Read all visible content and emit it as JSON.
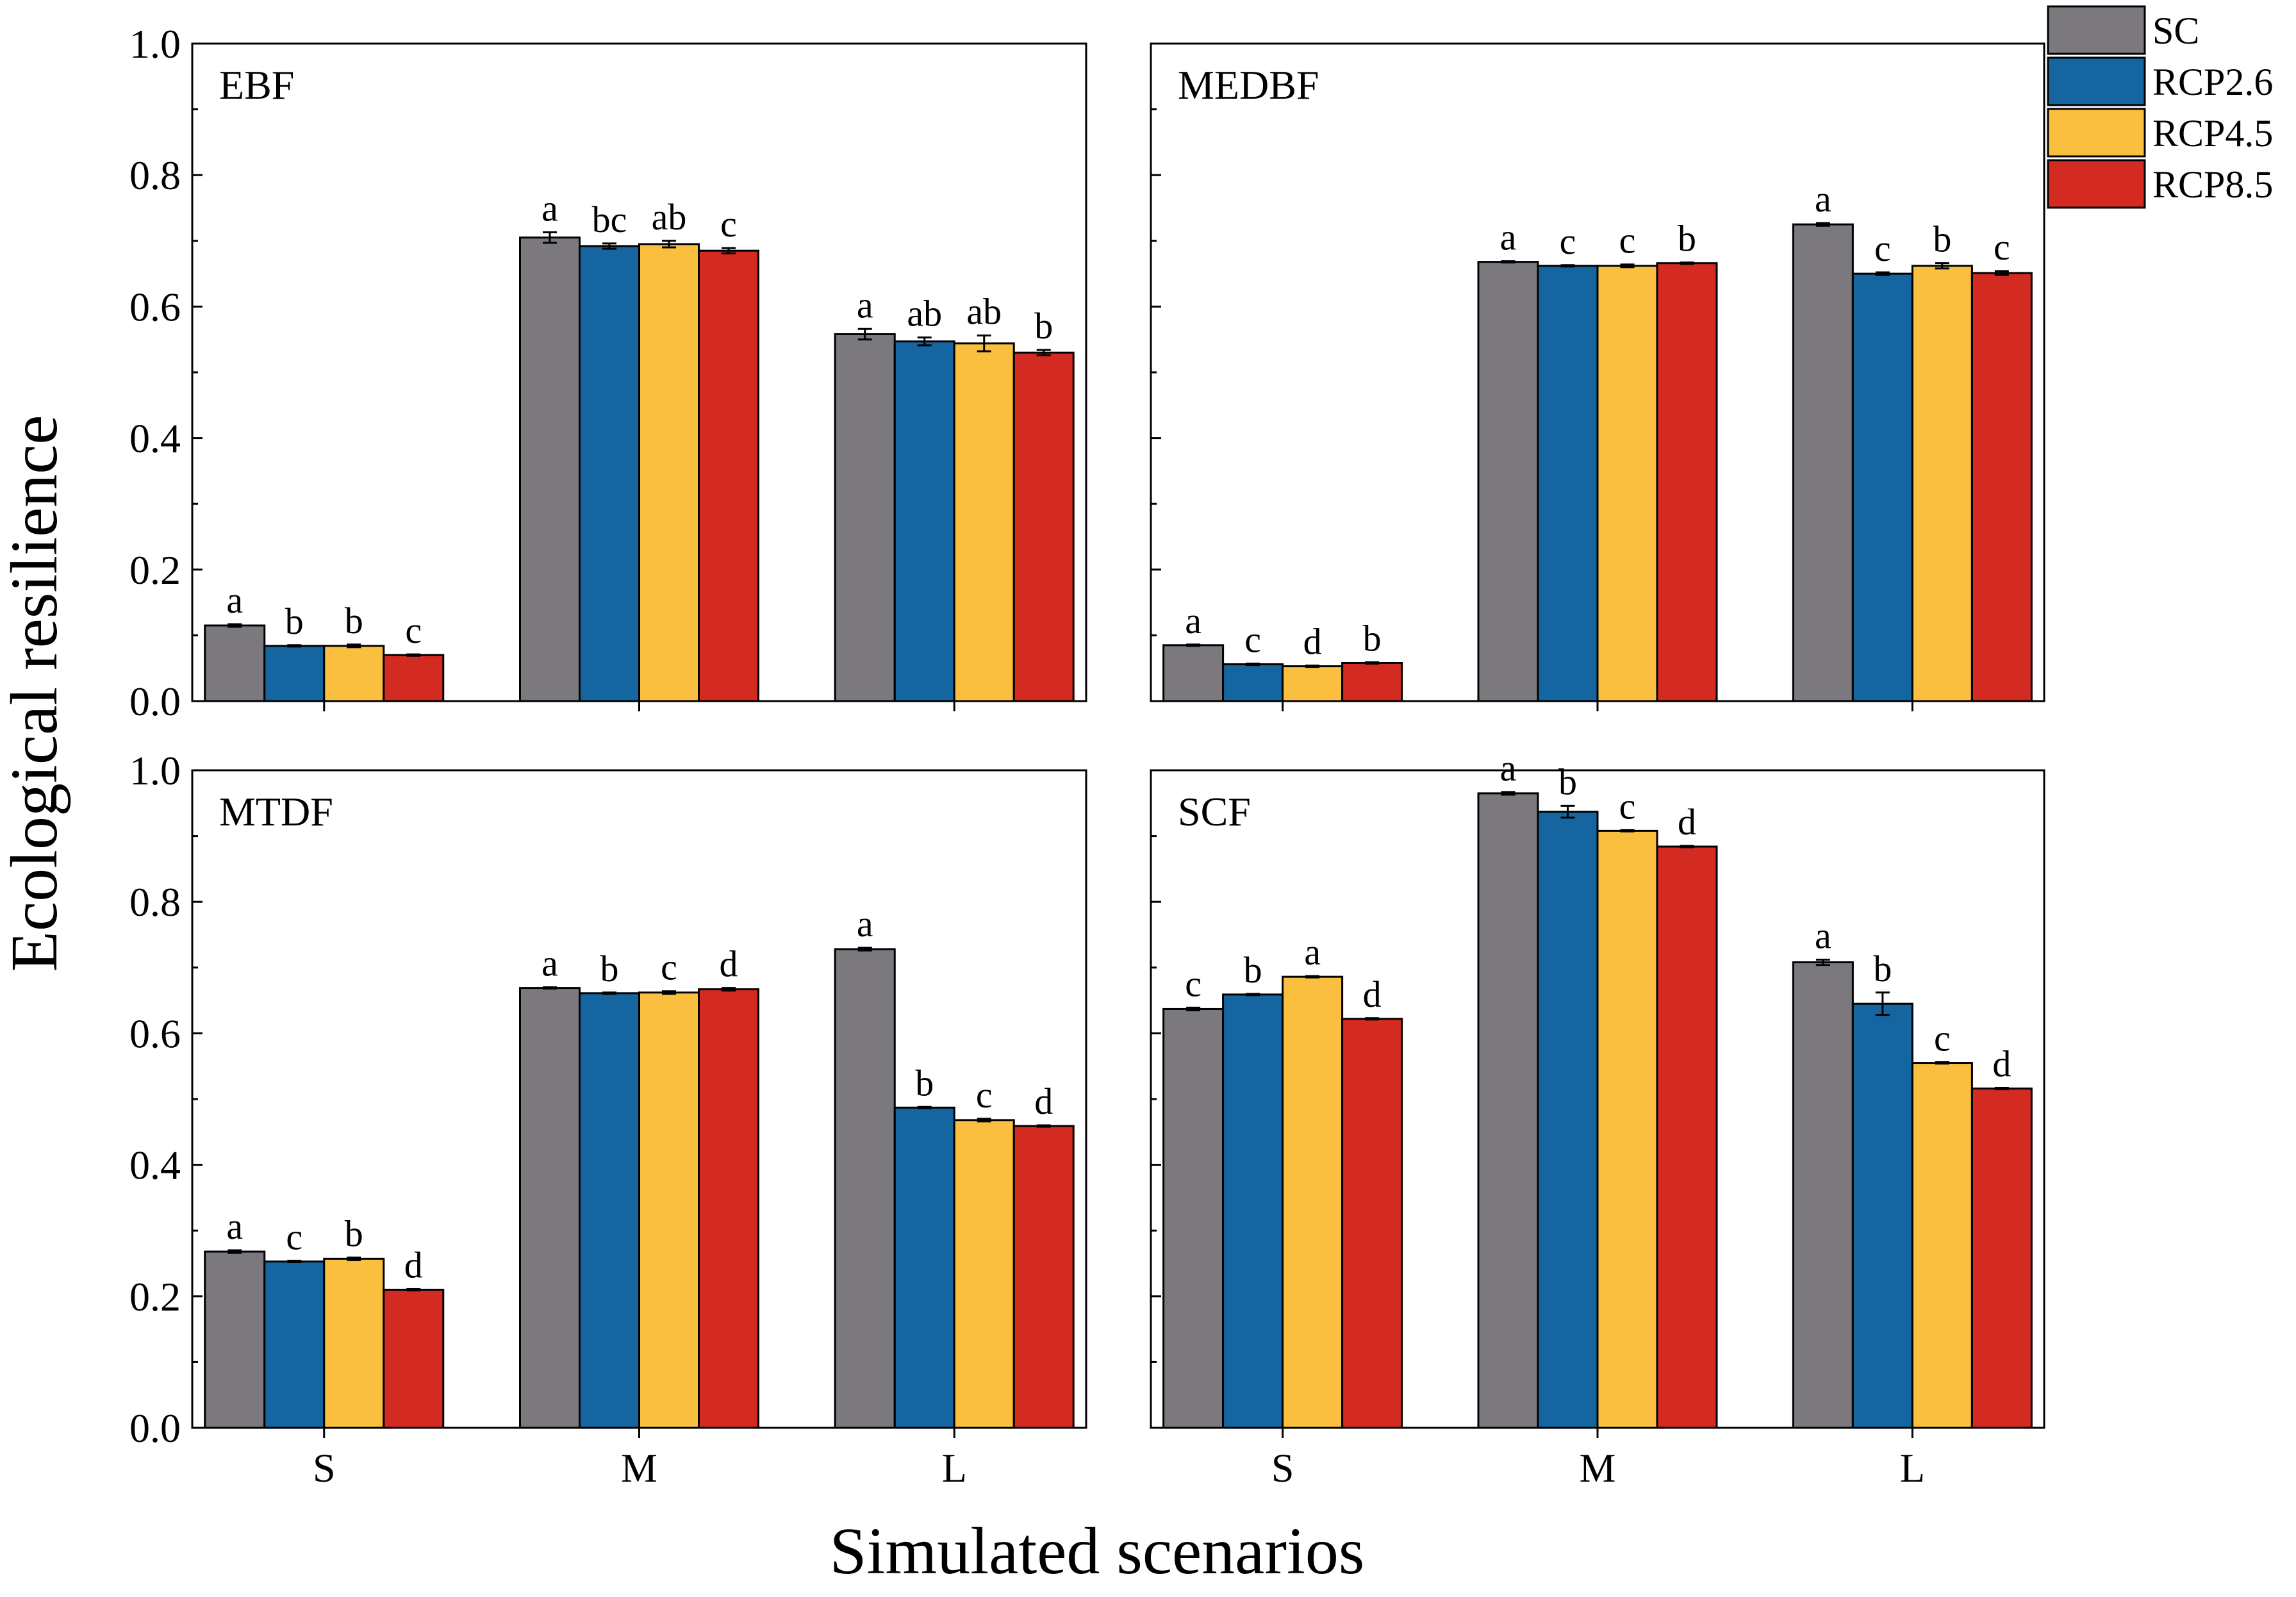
{
  "chart_data": {
    "type": "bar",
    "ylabel": "Ecological resilience",
    "xlabel": "Simulated scenarios",
    "ylim": [
      0,
      1.0
    ],
    "yticks": [
      "0.0",
      "0.2",
      "0.4",
      "0.6",
      "0.8",
      "1.0"
    ],
    "categories": [
      "S",
      "M",
      "L"
    ],
    "legend": {
      "placement": "top-right",
      "entries": [
        {
          "name": "SC",
          "color": "#7b797d"
        },
        {
          "name": "RCP2.6",
          "color": "#1565a0"
        },
        {
          "name": "RCP4.5",
          "color": "#fbbf40"
        },
        {
          "name": "RCP8.5",
          "color": "#d32a22"
        }
      ]
    },
    "panels": [
      {
        "title": "EBF",
        "series": [
          {
            "name": "SC",
            "values": [
              0.115,
              0.705,
              0.558
            ],
            "errors": [
              0.002,
              0.008,
              0.008
            ],
            "letters": [
              "a",
              "a",
              "a"
            ]
          },
          {
            "name": "RCP2.6",
            "values": [
              0.084,
              0.692,
              0.547
            ],
            "errors": [
              0.001,
              0.004,
              0.006
            ],
            "letters": [
              "b",
              "bc",
              "ab"
            ]
          },
          {
            "name": "RCP4.5",
            "values": [
              0.084,
              0.695,
              0.544
            ],
            "errors": [
              0.002,
              0.005,
              0.012
            ],
            "letters": [
              "b",
              "ab",
              "ab"
            ]
          },
          {
            "name": "RCP8.5",
            "values": [
              0.07,
              0.685,
              0.53
            ],
            "errors": [
              0.001,
              0.004,
              0.004
            ],
            "letters": [
              "c",
              "c",
              "b"
            ]
          }
        ]
      },
      {
        "title": "MEDBF",
        "series": [
          {
            "name": "SC",
            "values": [
              0.085,
              0.668,
              0.725
            ],
            "errors": [
              0.001,
              0.001,
              0.002
            ],
            "letters": [
              "a",
              "a",
              "a"
            ]
          },
          {
            "name": "RCP2.6",
            "values": [
              0.056,
              0.662,
              0.65
            ],
            "errors": [
              0.001,
              0.001,
              0.002
            ],
            "letters": [
              "c",
              "c",
              "c"
            ]
          },
          {
            "name": "RCP4.5",
            "values": [
              0.053,
              0.662,
              0.662
            ],
            "errors": [
              0.001,
              0.002,
              0.004
            ],
            "letters": [
              "d",
              "c",
              "b"
            ]
          },
          {
            "name": "RCP8.5",
            "values": [
              0.058,
              0.666,
              0.651
            ],
            "errors": [
              0.001,
              0.001,
              0.003
            ],
            "letters": [
              "b",
              "b",
              "c"
            ]
          }
        ]
      },
      {
        "title": "MTDF",
        "series": [
          {
            "name": "SC",
            "values": [
              0.268,
              0.669,
              0.728
            ],
            "errors": [
              0.002,
              0.001,
              0.002
            ],
            "letters": [
              "a",
              "a",
              "a"
            ]
          },
          {
            "name": "RCP2.6",
            "values": [
              0.253,
              0.661,
              0.487
            ],
            "errors": [
              0.001,
              0.001,
              0.001
            ],
            "letters": [
              "c",
              "b",
              "b"
            ]
          },
          {
            "name": "RCP4.5",
            "values": [
              0.257,
              0.662,
              0.468
            ],
            "errors": [
              0.002,
              0.002,
              0.002
            ],
            "letters": [
              "b",
              "c",
              "c"
            ]
          },
          {
            "name": "RCP8.5",
            "values": [
              0.21,
              0.667,
              0.459
            ],
            "errors": [
              0.001,
              0.002,
              0.001
            ],
            "letters": [
              "d",
              "d",
              "d"
            ]
          }
        ]
      },
      {
        "title": "SCF",
        "series": [
          {
            "name": "SC",
            "values": [
              0.637,
              0.965,
              0.708
            ],
            "errors": [
              0.002,
              0.002,
              0.004
            ],
            "letters": [
              "c",
              "a",
              "a"
            ]
          },
          {
            "name": "RCP2.6",
            "values": [
              0.659,
              0.937,
              0.645
            ],
            "errors": [
              0.001,
              0.009,
              0.017
            ],
            "letters": [
              "b",
              "b",
              "b"
            ]
          },
          {
            "name": "RCP4.5",
            "values": [
              0.686,
              0.908,
              0.555
            ],
            "errors": [
              0.001,
              0.001,
              0.001
            ],
            "letters": [
              "a",
              "c",
              "c"
            ]
          },
          {
            "name": "RCP8.5",
            "values": [
              0.622,
              0.884,
              0.516
            ],
            "errors": [
              0.001,
              0.001,
              0.001
            ],
            "letters": [
              "d",
              "d",
              "d"
            ]
          }
        ]
      }
    ]
  }
}
